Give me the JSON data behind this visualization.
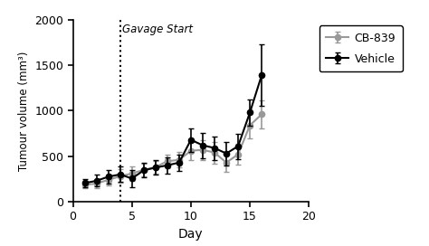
{
  "title": "",
  "xlabel": "Day",
  "ylabel": "Tumour volume (mm³)",
  "annotation": "Gavage Start",
  "vline_x": 4,
  "xlim": [
    0,
    20
  ],
  "ylim": [
    0,
    2000
  ],
  "xticks": [
    0,
    5,
    10,
    15,
    20
  ],
  "yticks": [
    0,
    500,
    1000,
    1500,
    2000
  ],
  "vehicle_x": [
    1,
    2,
    3,
    4,
    5,
    6,
    7,
    8,
    9,
    10,
    11,
    12,
    13,
    14,
    15,
    16
  ],
  "vehicle_y": [
    205,
    230,
    275,
    300,
    255,
    345,
    375,
    400,
    430,
    680,
    620,
    590,
    530,
    610,
    980,
    1390
  ],
  "vehicle_yerr": [
    45,
    65,
    75,
    85,
    95,
    80,
    80,
    90,
    90,
    130,
    140,
    130,
    130,
    140,
    140,
    340
  ],
  "cb839_x": [
    1,
    2,
    3,
    4,
    5,
    6,
    7,
    8,
    9,
    10,
    11,
    12,
    13,
    14,
    15,
    16
  ],
  "cb839_y": [
    185,
    200,
    240,
    280,
    310,
    350,
    380,
    445,
    460,
    560,
    570,
    540,
    430,
    520,
    840,
    960
  ],
  "cb839_yerr": [
    35,
    50,
    60,
    75,
    80,
    70,
    70,
    75,
    85,
    100,
    110,
    120,
    105,
    115,
    145,
    155
  ],
  "vehicle_color": "#000000",
  "cb839_color": "#999999",
  "legend_vehicle": "Vehicle",
  "legend_cb839": "CB-839",
  "marker": "o",
  "markersize": 4.5,
  "linewidth": 1.5,
  "elinewidth": 1.2,
  "capsize": 2.5,
  "background_color": "#ffffff"
}
